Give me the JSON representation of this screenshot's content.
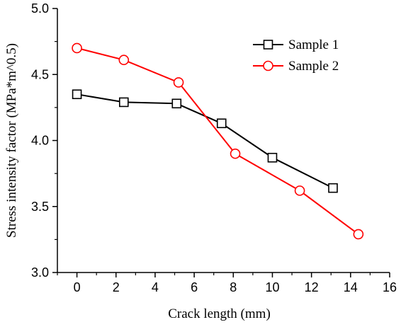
{
  "chart_data": {
    "type": "line",
    "xlabel": "Crack length (mm)",
    "ylabel": "Stress intensity factor (MPa*m^0.5)",
    "xlim": [
      -1,
      16
    ],
    "ylim": [
      3.0,
      5.0
    ],
    "x_ticks": [
      "0",
      "2",
      "4",
      "6",
      "8",
      "10",
      "12",
      "14",
      "16"
    ],
    "y_ticks": [
      "3.0",
      "3.5",
      "4.0",
      "4.5",
      "5.0"
    ],
    "legend_position": "top-right",
    "grid": false,
    "series": [
      {
        "name": "Sample 1",
        "color": "#000000",
        "marker": "square",
        "x": [
          0,
          2.4,
          5.1,
          7.4,
          10.0,
          13.1
        ],
        "y": [
          4.35,
          4.29,
          4.28,
          4.13,
          3.87,
          3.64
        ]
      },
      {
        "name": "Sample 2",
        "color": "#ff0000",
        "marker": "circle",
        "x": [
          0,
          2.4,
          5.2,
          8.1,
          11.4,
          14.4
        ],
        "y": [
          4.7,
          4.61,
          4.44,
          3.9,
          3.62,
          3.29
        ]
      }
    ]
  }
}
